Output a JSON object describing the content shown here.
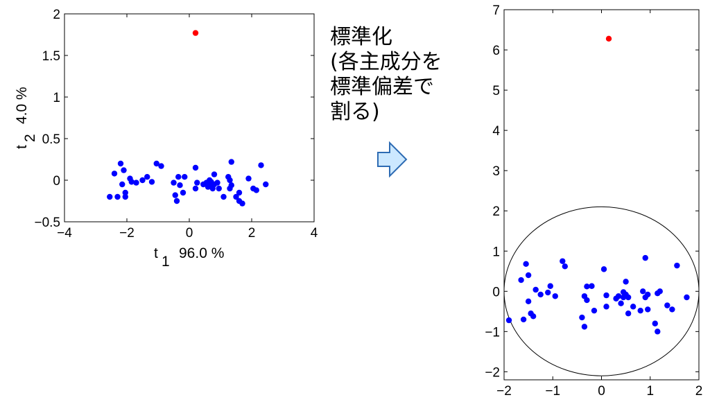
{
  "annotation": "標準化\n(各主成分を\n標準偏差で\n割る)",
  "colors": {
    "normal": "#0000ff",
    "outlier": "#ff0000",
    "arrow_fill": "#cce8ff",
    "arrow_stroke": "#2d6bb3"
  },
  "chart_data": [
    {
      "type": "scatter",
      "xlabel": {
        "symbol": "t",
        "subscript": "1",
        "text": "96.0 %"
      },
      "ylabel": {
        "symbol": "t",
        "subscript": "2",
        "text": "4.0 %"
      },
      "xlim": [
        -4,
        4
      ],
      "ylim": [
        -0.5,
        2
      ],
      "xticks": [
        -4,
        -2,
        0,
        2,
        4
      ],
      "yticks": [
        -0.5,
        0,
        0.5,
        1,
        1.5,
        2
      ],
      "ytick_labels": [
        "−0.5",
        "0",
        "0.5",
        "1",
        "1.5",
        "2"
      ],
      "xtick_labels": [
        "−4",
        "−2",
        "0",
        "2",
        "4"
      ],
      "grid": false,
      "series": [
        {
          "color": "blue",
          "points": [
            [
              -2.55,
              -0.2
            ],
            [
              -2.4,
              0.08
            ],
            [
              -2.3,
              -0.2
            ],
            [
              -2.2,
              0.2
            ],
            [
              -2.15,
              -0.05
            ],
            [
              -2.1,
              0.12
            ],
            [
              -2.05,
              -0.15
            ],
            [
              -2.05,
              -0.2
            ],
            [
              -1.9,
              0.02
            ],
            [
              -1.85,
              -0.02
            ],
            [
              -1.7,
              -0.03
            ],
            [
              -1.5,
              0.0
            ],
            [
              -1.35,
              0.04
            ],
            [
              -1.2,
              -0.02
            ],
            [
              -1.05,
              0.2
            ],
            [
              -0.9,
              0.17
            ],
            [
              -0.5,
              -0.03
            ],
            [
              -0.45,
              -0.18
            ],
            [
              -0.4,
              -0.25
            ],
            [
              -0.35,
              0.04
            ],
            [
              -0.3,
              -0.06
            ],
            [
              -0.2,
              -0.15
            ],
            [
              -0.15,
              0.04
            ],
            [
              0.2,
              0.15
            ],
            [
              0.2,
              -0.1
            ],
            [
              0.25,
              -0.03
            ],
            [
              0.45,
              -0.05
            ],
            [
              0.55,
              -0.03
            ],
            [
              0.6,
              -0.08
            ],
            [
              0.65,
              0.0
            ],
            [
              0.65,
              -0.05
            ],
            [
              0.7,
              -0.02
            ],
            [
              0.75,
              -0.1
            ],
            [
              0.8,
              -0.05
            ],
            [
              0.8,
              0.07
            ],
            [
              0.9,
              -0.03
            ],
            [
              0.95,
              -0.1
            ],
            [
              1.1,
              -0.2
            ],
            [
              1.25,
              0.04
            ],
            [
              1.3,
              0.0
            ],
            [
              1.35,
              -0.06
            ],
            [
              1.3,
              -0.1
            ],
            [
              1.35,
              0.22
            ],
            [
              1.5,
              -0.2
            ],
            [
              1.6,
              -0.15
            ],
            [
              1.6,
              -0.25
            ],
            [
              1.9,
              0.02
            ],
            [
              2.05,
              -0.1
            ],
            [
              2.15,
              -0.12
            ],
            [
              2.3,
              0.18
            ],
            [
              2.45,
              -0.05
            ],
            [
              1.7,
              -0.28
            ]
          ]
        },
        {
          "color": "red",
          "points": [
            [
              0.2,
              1.77
            ]
          ]
        }
      ]
    },
    {
      "type": "scatter",
      "xlim": [
        -2,
        2
      ],
      "ylim": [
        -2.2,
        7
      ],
      "xticks": [
        -2,
        -1,
        0,
        1,
        2
      ],
      "yticks": [
        -2,
        -1,
        0,
        1,
        2,
        3,
        4,
        5,
        6,
        7
      ],
      "xtick_labels": [
        "−2",
        "−1",
        "0",
        "1",
        "2"
      ],
      "ytick_labels": [
        "−2",
        "−1",
        "0",
        "1",
        "2",
        "3",
        "4",
        "5",
        "6",
        "7"
      ],
      "grid": false,
      "ellipse": {
        "center": [
          0.0,
          0.0
        ],
        "rx": 2.0,
        "ry": 2.1
      },
      "series": [
        {
          "color": "blue",
          "points": [
            [
              -1.9,
              -0.72
            ],
            [
              -1.65,
              0.28
            ],
            [
              -1.6,
              -0.7
            ],
            [
              -1.55,
              0.68
            ],
            [
              -1.5,
              -0.25
            ],
            [
              -1.5,
              0.4
            ],
            [
              -1.45,
              -0.55
            ],
            [
              -1.4,
              -0.62
            ],
            [
              -1.35,
              0.04
            ],
            [
              -1.25,
              -0.08
            ],
            [
              -1.1,
              -0.03
            ],
            [
              -1.05,
              0.13
            ],
            [
              -0.95,
              -0.12
            ],
            [
              -0.8,
              0.75
            ],
            [
              -0.75,
              0.62
            ],
            [
              -0.4,
              -0.65
            ],
            [
              -0.35,
              -0.88
            ],
            [
              -0.3,
              0.12
            ],
            [
              -0.3,
              -0.22
            ],
            [
              -0.2,
              0.13
            ],
            [
              -0.15,
              -0.48
            ],
            [
              -0.35,
              -0.12
            ],
            [
              0.05,
              0.55
            ],
            [
              0.1,
              -0.1
            ],
            [
              0.1,
              -0.38
            ],
            [
              0.3,
              -0.18
            ],
            [
              0.35,
              -0.12
            ],
            [
              0.4,
              -0.3
            ],
            [
              0.45,
              -0.02
            ],
            [
              0.45,
              -0.15
            ],
            [
              0.5,
              0.24
            ],
            [
              0.5,
              -0.08
            ],
            [
              0.55,
              -0.55
            ],
            [
              0.55,
              -0.15
            ],
            [
              0.65,
              -0.38
            ],
            [
              0.8,
              -0.48
            ],
            [
              0.85,
              0.0
            ],
            [
              0.9,
              -0.15
            ],
            [
              0.9,
              0.83
            ],
            [
              0.95,
              -0.08
            ],
            [
              1.1,
              -0.8
            ],
            [
              1.15,
              -0.05
            ],
            [
              1.15,
              -1.0
            ],
            [
              1.2,
              0.0
            ],
            [
              1.35,
              -0.35
            ],
            [
              1.45,
              -0.45
            ],
            [
              1.55,
              0.64
            ],
            [
              1.75,
              -0.15
            ],
            [
              0.95,
              -0.45
            ]
          ]
        },
        {
          "color": "red",
          "points": [
            [
              0.15,
              6.28
            ]
          ]
        }
      ]
    }
  ]
}
